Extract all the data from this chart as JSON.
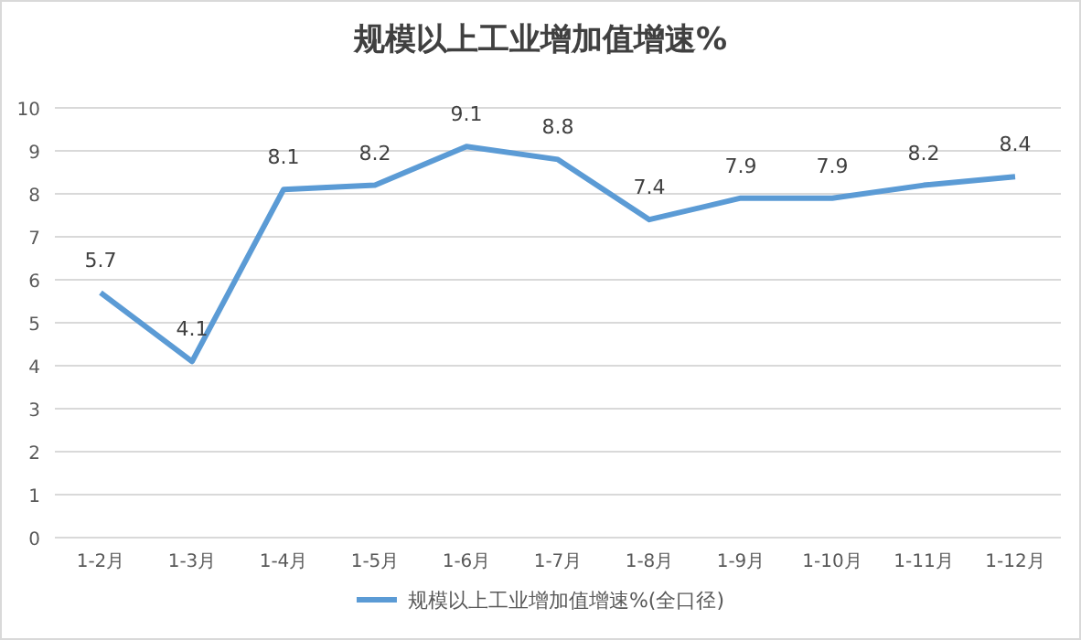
{
  "chart_data": {
    "type": "line",
    "title": "规模以上工业增加值增速%",
    "categories": [
      "1-2月",
      "1-3月",
      "1-4月",
      "1-5月",
      "1-6月",
      "1-7月",
      "1-8月",
      "1-9月",
      "1-10月",
      "1-11月",
      "1-12月"
    ],
    "series": [
      {
        "name": "规模以上工业增加值增速%(全口径)",
        "color": "#5b9bd5",
        "values": [
          5.7,
          4.1,
          8.1,
          8.2,
          9.1,
          8.8,
          7.4,
          7.9,
          7.9,
          8.2,
          8.4
        ]
      }
    ],
    "ylim": [
      0,
      10
    ],
    "yticks": [
      0,
      1,
      2,
      3,
      4,
      5,
      6,
      7,
      8,
      9,
      10
    ],
    "grid": "y",
    "legend": "bottom",
    "data_labels": true,
    "marker": "none"
  }
}
